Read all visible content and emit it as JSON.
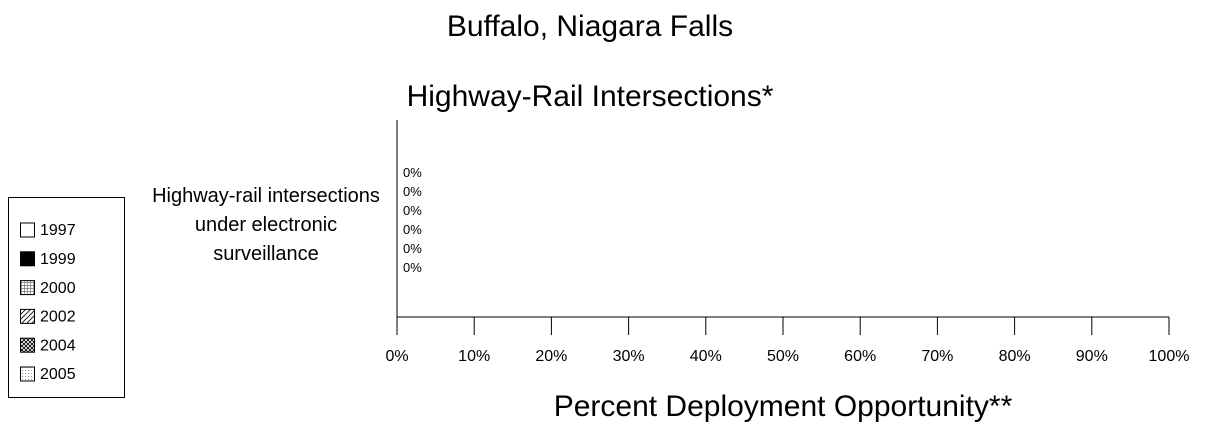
{
  "chart_data": {
    "type": "barh",
    "title": "Buffalo, Niagara Falls",
    "subtitle": "Highway-Rail Intersections*",
    "x_label": "Percent Deployment Opportunity**",
    "categories": [
      "Highway-rail intersections under electronic surveillance"
    ],
    "series": [
      {
        "name": "1997",
        "color": "#ffffff",
        "pattern": "solid",
        "values": [
          0
        ],
        "value_labels": [
          "0%"
        ]
      },
      {
        "name": "1999",
        "color": "#000000",
        "pattern": "solid",
        "values": [
          0
        ],
        "value_labels": [
          "0%"
        ]
      },
      {
        "name": "2000",
        "color": "#777777",
        "pattern": "grid",
        "values": [
          0
        ],
        "value_labels": [
          "0%"
        ]
      },
      {
        "name": "2002",
        "color": "#000000",
        "pattern": "hatch",
        "values": [
          0
        ],
        "value_labels": [
          "0%"
        ]
      },
      {
        "name": "2004",
        "color": "#000000",
        "pattern": "crosshatch",
        "values": [
          0
        ],
        "value_labels": [
          "0%"
        ]
      },
      {
        "name": "2005",
        "color": "#999999",
        "pattern": "dots",
        "values": [
          0
        ],
        "value_labels": [
          "0%"
        ]
      }
    ],
    "xlim": [
      0,
      100
    ],
    "xticks": [
      {
        "value": 0,
        "label": "0%"
      },
      {
        "value": 10,
        "label": "10%"
      },
      {
        "value": 20,
        "label": "20%"
      },
      {
        "value": 30,
        "label": "30%"
      },
      {
        "value": 40,
        "label": "40%"
      },
      {
        "value": 50,
        "label": "50%"
      },
      {
        "value": 60,
        "label": "60%"
      },
      {
        "value": 70,
        "label": "70%"
      },
      {
        "value": 80,
        "label": "80%"
      },
      {
        "value": 90,
        "label": "90%"
      },
      {
        "value": 100,
        "label": "100%"
      }
    ],
    "legend": "left"
  }
}
